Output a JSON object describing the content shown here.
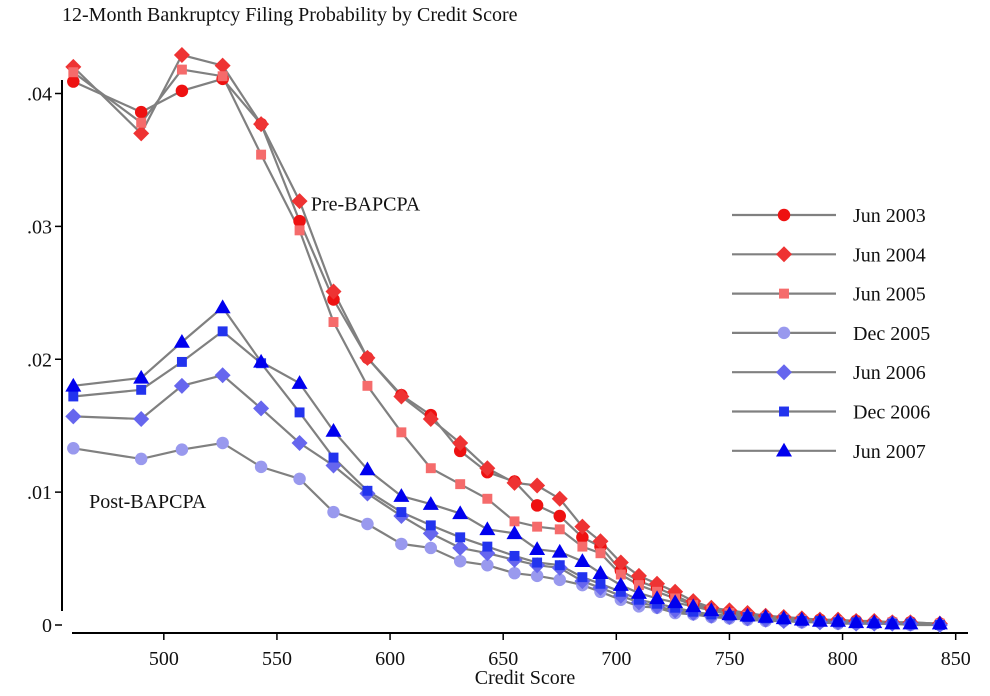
{
  "chart_data": {
    "type": "line",
    "title": "12-Month Bankruptcy Filing Probability by Credit Score",
    "xlabel": "Credit Score",
    "ylabel": "",
    "xlim": [
      455,
      855
    ],
    "ylim": [
      0,
      0.0435
    ],
    "xticks": [
      500,
      550,
      600,
      650,
      700,
      750,
      800,
      850
    ],
    "yticks": [
      0,
      0.01,
      0.02,
      0.03,
      0.04
    ],
    "ytick_labels": [
      "0",
      ".01",
      ".02",
      ".03",
      ".04"
    ],
    "grid": false,
    "legend_position": "right",
    "line_color": "#808080",
    "x": [
      460,
      490,
      508,
      526,
      543,
      560,
      575,
      590,
      605,
      618,
      631,
      643,
      655,
      665,
      675,
      685,
      693,
      702,
      710,
      718,
      726,
      734,
      742,
      750,
      758,
      766,
      774,
      782,
      790,
      798,
      806,
      814,
      822,
      830,
      843
    ],
    "annotations": [
      {
        "text": "Pre-BAPCPA",
        "x": 565,
        "y": 0.0312
      },
      {
        "text": "Post-BAPCPA",
        "x": 467,
        "y": 0.0088
      }
    ],
    "series": [
      {
        "name": "Jun 2003",
        "color": "#ee1111",
        "marker": "circle",
        "values": [
          0.0409,
          0.0386,
          0.0402,
          0.0411,
          0.0377,
          0.0304,
          0.0245,
          0.0201,
          0.0173,
          0.0158,
          0.0131,
          0.0115,
          0.0108,
          0.009,
          0.0082,
          0.0066,
          0.0059,
          0.0041,
          0.0033,
          0.0028,
          0.0022,
          0.0016,
          0.0012,
          0.0009,
          0.0008,
          0.0006,
          0.0005,
          0.0004,
          0.0004,
          0.0003,
          0.0003,
          0.0002,
          0.0002,
          0.0002,
          0.0001
        ]
      },
      {
        "name": "Jun 2004",
        "color": "#ee3333",
        "marker": "diamond",
        "values": [
          0.042,
          0.037,
          0.0429,
          0.0421,
          0.0377,
          0.0319,
          0.0251,
          0.0201,
          0.0172,
          0.0155,
          0.0137,
          0.0118,
          0.0107,
          0.0105,
          0.0095,
          0.0074,
          0.0063,
          0.0047,
          0.0037,
          0.0031,
          0.0025,
          0.0018,
          0.0013,
          0.0011,
          0.0009,
          0.0007,
          0.0006,
          0.0005,
          0.0004,
          0.0004,
          0.0003,
          0.0003,
          0.0002,
          0.0002,
          0.0001
        ]
      },
      {
        "name": "Jun 2005",
        "color": "#f56b6b",
        "marker": "square",
        "values": [
          0.0416,
          0.0378,
          0.0418,
          0.0413,
          0.0354,
          0.0297,
          0.0228,
          0.018,
          0.0145,
          0.0118,
          0.0106,
          0.0095,
          0.0078,
          0.0074,
          0.0072,
          0.0059,
          0.0054,
          0.0038,
          0.003,
          0.0025,
          0.002,
          0.0015,
          0.0011,
          0.0009,
          0.0007,
          0.0006,
          0.0005,
          0.0004,
          0.0003,
          0.0003,
          0.0002,
          0.0002,
          0.0002,
          0.0001,
          0.0001
        ]
      },
      {
        "name": "Dec 2005",
        "color": "#9999ee",
        "marker": "circle",
        "values": [
          0.0133,
          0.0125,
          0.0132,
          0.0137,
          0.0119,
          0.011,
          0.0085,
          0.0076,
          0.0061,
          0.0058,
          0.0048,
          0.0045,
          0.0039,
          0.0037,
          0.0034,
          0.003,
          0.0025,
          0.0019,
          0.0014,
          0.0013,
          0.0009,
          0.0008,
          0.0006,
          0.0005,
          0.0004,
          0.0003,
          0.0003,
          0.0002,
          0.0002,
          0.0001,
          0.0001,
          0.0001,
          0.0001,
          0.0,
          0.0
        ]
      },
      {
        "name": "Jun 2006",
        "color": "#6666ee",
        "marker": "diamond",
        "values": [
          0.0157,
          0.0155,
          0.018,
          0.0188,
          0.0163,
          0.0137,
          0.012,
          0.0099,
          0.0082,
          0.0069,
          0.0058,
          0.0054,
          0.0049,
          0.0045,
          0.0043,
          0.0033,
          0.0028,
          0.0022,
          0.0017,
          0.0014,
          0.0011,
          0.0009,
          0.0007,
          0.0006,
          0.0005,
          0.0004,
          0.0003,
          0.0003,
          0.0002,
          0.0002,
          0.0001,
          0.0001,
          0.0001,
          0.0001,
          0.0
        ]
      },
      {
        "name": "Dec 2006",
        "color": "#2233ee",
        "marker": "square",
        "values": [
          0.0172,
          0.0177,
          0.0198,
          0.0221,
          0.0197,
          0.016,
          0.0126,
          0.0101,
          0.0085,
          0.0075,
          0.0066,
          0.0059,
          0.0052,
          0.0047,
          0.0045,
          0.0036,
          0.0031,
          0.0025,
          0.0019,
          0.0016,
          0.0013,
          0.001,
          0.0008,
          0.0007,
          0.0006,
          0.0005,
          0.0004,
          0.0003,
          0.0003,
          0.0002,
          0.0002,
          0.0001,
          0.0001,
          0.0001,
          0.0
        ]
      },
      {
        "name": "Jun 2007",
        "color": "#0000ee",
        "marker": "triangle",
        "values": [
          0.018,
          0.0186,
          0.0213,
          0.0239,
          0.0198,
          0.0182,
          0.0146,
          0.0117,
          0.0097,
          0.0091,
          0.0084,
          0.0072,
          0.0069,
          0.0057,
          0.0055,
          0.0048,
          0.0039,
          0.003,
          0.0024,
          0.002,
          0.0017,
          0.0014,
          0.0011,
          0.0008,
          0.0007,
          0.0006,
          0.0005,
          0.0004,
          0.0003,
          0.0003,
          0.0002,
          0.0002,
          0.0001,
          0.0001,
          0.0001
        ]
      }
    ]
  }
}
